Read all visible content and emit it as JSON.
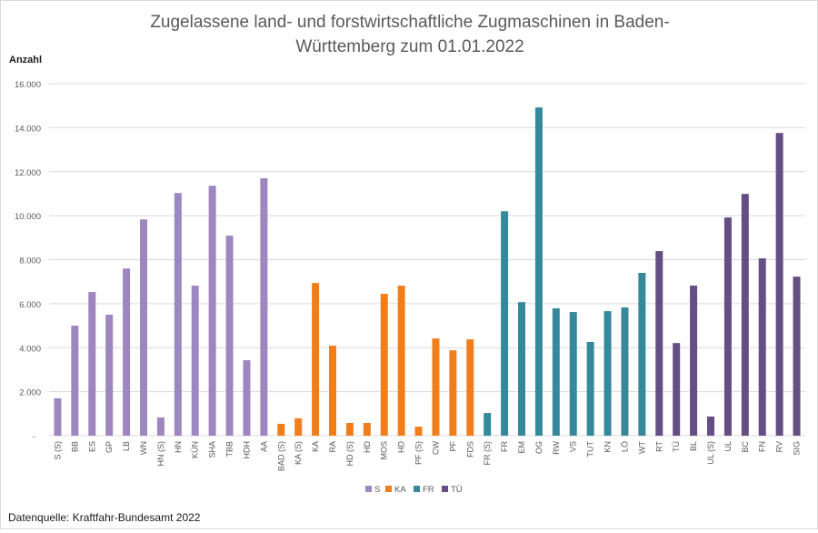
{
  "chart_data": {
    "type": "bar",
    "title": "Zugelassene land- und forstwirtschaftliche Zugmaschinen in Baden-Württemberg zum 01.01.2022",
    "title_lines": [
      "Zugelassene land- und forstwirtschaftliche Zugmaschinen in Baden-",
      "Württemberg zum 01.01.2022"
    ],
    "ylabel": "Anzahl",
    "xlabel": "",
    "ylim": [
      0,
      16000
    ],
    "yticks": [
      0,
      2000,
      4000,
      6000,
      8000,
      10000,
      12000,
      14000,
      16000
    ],
    "ytick_labels": [
      "-",
      "2.000",
      "4.000",
      "6.000",
      "8.000",
      "10.000",
      "12.000",
      "14.000",
      "16.000"
    ],
    "grid": true,
    "legend_position": "bottom",
    "groups": [
      {
        "name": "S",
        "color": "#9e86c0"
      },
      {
        "name": "KA",
        "color": "#f07f1b"
      },
      {
        "name": "FR",
        "color": "#35899b"
      },
      {
        "name": "TÜ",
        "color": "#644e83"
      }
    ],
    "categories": [
      "S (S)",
      "BB",
      "ES",
      "GP",
      "LB",
      "WN",
      "HN (S)",
      "HN",
      "KÜN",
      "SHA",
      "TBB",
      "HDH",
      "AA",
      "BAD (S)",
      "KA (S)",
      "KA",
      "RA",
      "HD (S)",
      "HD",
      "MOS",
      "HD",
      "PF (S)",
      "CW",
      "PF",
      "FDS",
      "FR (S)",
      "FR",
      "EM",
      "OG",
      "RW",
      "VS",
      "TUT",
      "KN",
      "LÖ",
      "WT",
      "RT",
      "TÜ",
      "BL",
      "UL (S)",
      "UL",
      "BC",
      "FN",
      "RV",
      "SIG"
    ],
    "category_group": [
      "S",
      "S",
      "S",
      "S",
      "S",
      "S",
      "S",
      "S",
      "S",
      "S",
      "S",
      "S",
      "S",
      "KA",
      "KA",
      "KA",
      "KA",
      "KA",
      "KA",
      "KA",
      "KA",
      "KA",
      "KA",
      "KA",
      "KA",
      "FR",
      "FR",
      "FR",
      "FR",
      "FR",
      "FR",
      "FR",
      "FR",
      "FR",
      "FR",
      "TÜ",
      "TÜ",
      "TÜ",
      "TÜ",
      "TÜ",
      "TÜ",
      "TÜ",
      "TÜ",
      "TÜ"
    ],
    "values": [
      1700,
      5000,
      6530,
      5500,
      7600,
      9830,
      830,
      11030,
      6820,
      11360,
      9090,
      3430,
      11700,
      540,
      790,
      6940,
      4090,
      580,
      580,
      6450,
      6820,
      410,
      4420,
      3880,
      4380,
      1030,
      10200,
      6070,
      14920,
      5790,
      5620,
      4260,
      5660,
      5830,
      7400,
      8390,
      4210,
      6820,
      870,
      9920,
      10990,
      8060,
      13760,
      7230
    ],
    "source": "Datenquelle: Kraftfahr-Bundesamt 2022"
  }
}
